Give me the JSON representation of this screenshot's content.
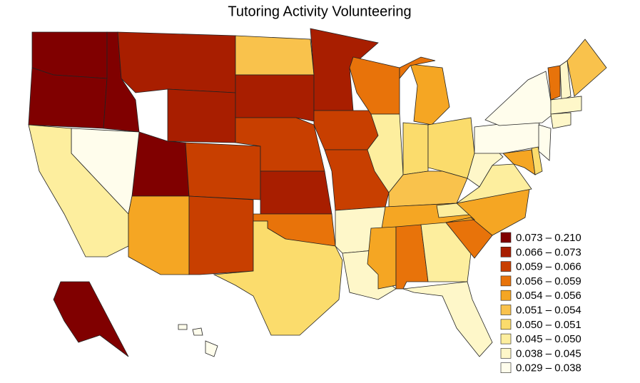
{
  "chart_data": {
    "type": "choropleth",
    "title": "Tutoring Activity Volunteering",
    "legend": {
      "labels": [
        "0.073 – 0.210",
        "0.066 – 0.073",
        "0.059 – 0.066",
        "0.056 – 0.059",
        "0.054 – 0.056",
        "0.051 – 0.054",
        "0.050 – 0.051",
        "0.045 – 0.050",
        "0.038 – 0.045",
        "0.029 – 0.038"
      ],
      "colors": [
        "#800000",
        "#a81e00",
        "#c83f00",
        "#e8730a",
        "#f5a623",
        "#f9c24c",
        "#fbdc6c",
        "#fdee9e",
        "#fef7c9",
        "#fffdec"
      ]
    },
    "regions": [
      0,
      0,
      0,
      1,
      1,
      0,
      9,
      7,
      4,
      2,
      2,
      5,
      1,
      2,
      1,
      3,
      6,
      1,
      2,
      2,
      8,
      8,
      3,
      7,
      4,
      3,
      6,
      6,
      5,
      4,
      4,
      3,
      7,
      8,
      7,
      3,
      4,
      8,
      7,
      4,
      6,
      9,
      9,
      9,
      3,
      8,
      5,
      8,
      8,
      0,
      9,
      9,
      9
    ]
  }
}
